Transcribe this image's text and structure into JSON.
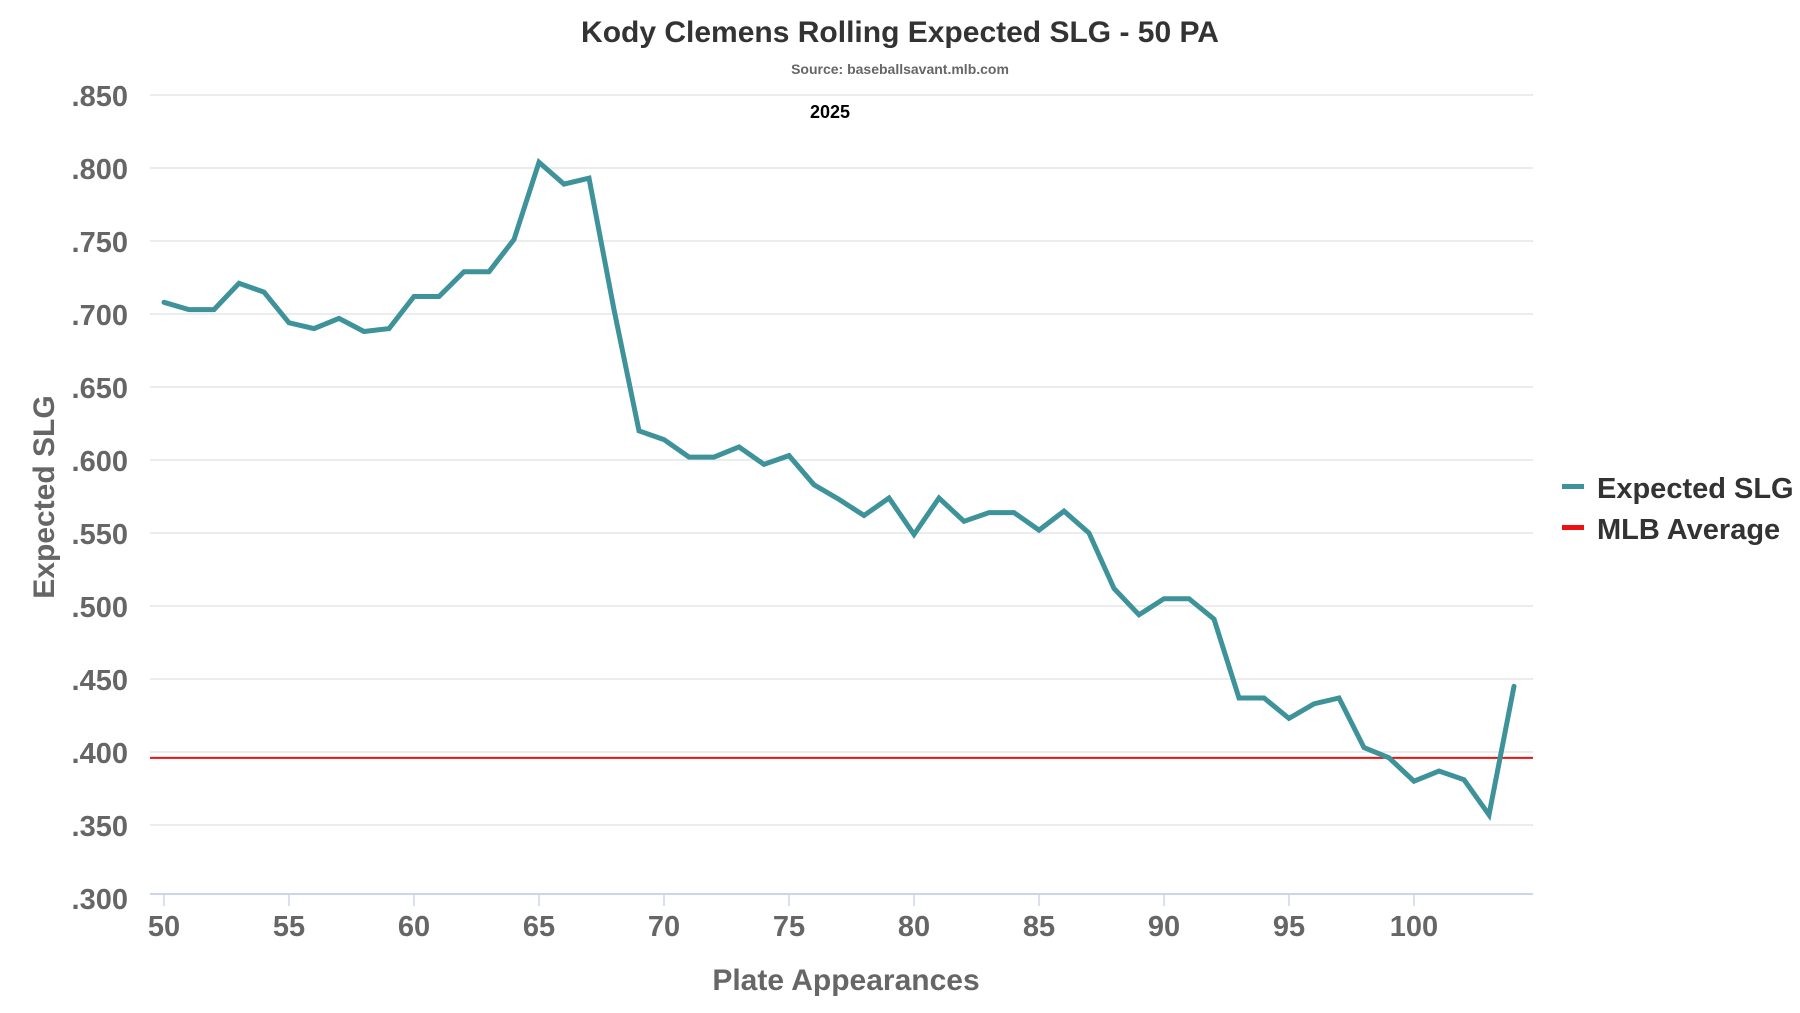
{
  "chart_data": {
    "type": "line",
    "title": "Kody Clemens Rolling Expected SLG - 50 PA",
    "subtitle": "Source: baseballsavant.mlb.com",
    "annotation": "2025",
    "xlabel": "Plate Appearances",
    "ylabel": "Expected SLG",
    "xlim": [
      50,
      104
    ],
    "ylim": [
      0.3,
      0.85
    ],
    "x_ticks": [
      50,
      55,
      60,
      65,
      70,
      75,
      80,
      85,
      90,
      95,
      100
    ],
    "x_tick_labels": [
      "50",
      "55",
      "60",
      "65",
      "70",
      "75",
      "80",
      "85",
      "90",
      "95",
      "100"
    ],
    "y_ticks": [
      0.3,
      0.35,
      0.4,
      0.45,
      0.5,
      0.55,
      0.6,
      0.65,
      0.7,
      0.75,
      0.8,
      0.85
    ],
    "y_tick_labels": [
      ".300",
      ".350",
      ".400",
      ".450",
      ".500",
      ".550",
      ".600",
      ".650",
      ".700",
      ".750",
      ".800",
      ".850"
    ],
    "grid": true,
    "legend_placement": "right",
    "series": [
      {
        "name": "Expected SLG",
        "color": "#3d9399",
        "x": [
          50,
          51,
          52,
          53,
          54,
          55,
          56,
          57,
          58,
          59,
          60,
          61,
          62,
          63,
          64,
          65,
          66,
          67,
          68,
          69,
          70,
          71,
          72,
          73,
          74,
          75,
          76,
          77,
          78,
          79,
          80,
          81,
          82,
          83,
          84,
          85,
          86,
          87,
          88,
          89,
          90,
          91,
          92,
          93,
          94,
          95,
          96,
          97,
          98,
          99,
          100,
          101,
          102,
          103,
          104
        ],
        "values": [
          0.708,
          0.703,
          0.703,
          0.721,
          0.715,
          0.694,
          0.69,
          0.697,
          0.688,
          0.69,
          0.712,
          0.712,
          0.729,
          0.729,
          0.751,
          0.804,
          0.789,
          0.793,
          0.703,
          0.62,
          0.614,
          0.602,
          0.602,
          0.609,
          0.597,
          0.603,
          0.583,
          0.573,
          0.562,
          0.574,
          0.549,
          0.574,
          0.558,
          0.564,
          0.564,
          0.552,
          0.565,
          0.55,
          0.512,
          0.494,
          0.505,
          0.505,
          0.491,
          0.437,
          0.437,
          0.423,
          0.433,
          0.437,
          0.403,
          0.396,
          0.38,
          0.387,
          0.381,
          0.357,
          0.445
        ]
      },
      {
        "name": "MLB Average",
        "color": "#ee1111",
        "constant": 0.396
      }
    ]
  }
}
